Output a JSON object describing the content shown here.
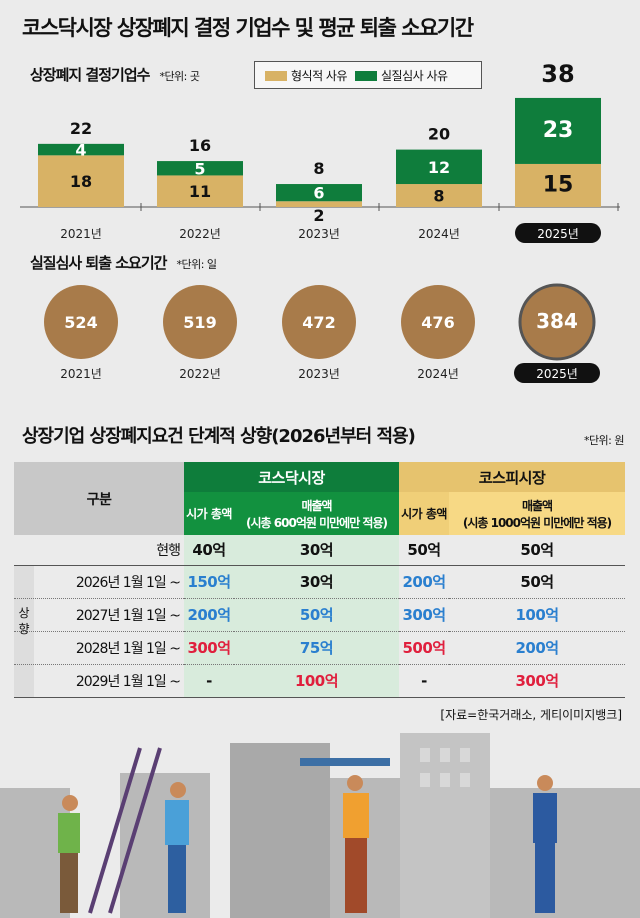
{
  "title": "코스닥시장 상장폐지 결정 기업수 및 평균 퇴출 소요기간",
  "chart_data": [
    {
      "type": "bar",
      "stacked": true,
      "title": "상장폐지 결정기업수",
      "unit": "*단위: 곳",
      "categories": [
        "2021년",
        "2022년",
        "2023년",
        "2024년",
        "2025년"
      ],
      "series": [
        {
          "name": "형식적 사유",
          "color": "#d8b265",
          "values": [
            18,
            11,
            2,
            8,
            15
          ]
        },
        {
          "name": "실질심사 사유",
          "color": "#0f7d3c",
          "values": [
            4,
            5,
            6,
            12,
            23
          ]
        }
      ],
      "totals": [
        22,
        16,
        8,
        20,
        38
      ],
      "highlight": "2025년"
    },
    {
      "type": "bubble",
      "title": "실질심사 퇴출 소요기간",
      "unit": "*단위: 일",
      "categories": [
        "2021년",
        "2022년",
        "2023년",
        "2024년",
        "2025년"
      ],
      "values": [
        524,
        519,
        472,
        476,
        384
      ],
      "color": "#a87b4a"
    }
  ],
  "table": {
    "title": "상장기업 상장폐지요건 단계적 상향(2026년부터 적용)",
    "unit": "*단위: 원",
    "header": {
      "category": "구분",
      "kosdaq": "코스닥시장",
      "kospi": "코스피시장",
      "cap": "시가 총액",
      "kosdaq_sales": "매출액",
      "kosdaq_sales_note": "(시총 600억원 미만에만 적용)",
      "kospi_sales": "매출액",
      "kospi_sales_note": "(시총 1000억원 미만에만 적용)"
    },
    "raise_label": "상향",
    "rows": [
      {
        "label": "현행",
        "cells": [
          {
            "v": "40억",
            "c": ""
          },
          {
            "v": "30억",
            "c": ""
          },
          {
            "v": "50억",
            "c": ""
          },
          {
            "v": "50억",
            "c": ""
          }
        ]
      },
      {
        "label": "2026년 1월 1일 ~",
        "cells": [
          {
            "v": "150억",
            "c": "blue"
          },
          {
            "v": "30억",
            "c": ""
          },
          {
            "v": "200억",
            "c": "blue"
          },
          {
            "v": "50억",
            "c": ""
          }
        ]
      },
      {
        "label": "2027년 1월 1일 ~",
        "cells": [
          {
            "v": "200억",
            "c": "blue"
          },
          {
            "v": "50억",
            "c": "blue"
          },
          {
            "v": "300억",
            "c": "blue"
          },
          {
            "v": "100억",
            "c": "blue"
          }
        ]
      },
      {
        "label": "2028년 1월 1일 ~",
        "cells": [
          {
            "v": "300억",
            "c": "red"
          },
          {
            "v": "75억",
            "c": "blue"
          },
          {
            "v": "500억",
            "c": "red"
          },
          {
            "v": "200억",
            "c": "blue"
          }
        ]
      },
      {
        "label": "2029년 1월 1일 ~",
        "cells": [
          {
            "v": "-",
            "c": ""
          },
          {
            "v": "100억",
            "c": "red"
          },
          {
            "v": "-",
            "c": ""
          },
          {
            "v": "300억",
            "c": "red"
          }
        ]
      }
    ]
  },
  "source": "[자료=한국거래소, 게티이미지뱅크]"
}
